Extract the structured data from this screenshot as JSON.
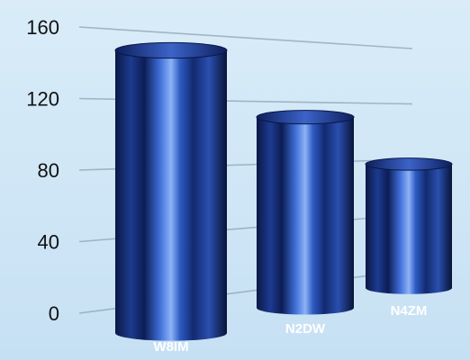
{
  "chart_data": {
    "type": "bar",
    "title": "",
    "xlabel": "",
    "ylabel": "",
    "categories": [
      "W8IM",
      "N2DW",
      "N4ZM"
    ],
    "values": [
      157,
      107,
      86
    ],
    "ylim": [
      0,
      160
    ],
    "yticks": [
      0,
      40,
      80,
      120,
      160
    ],
    "grid": true,
    "legend": "none",
    "colors": {
      "bar": "#1f3f9a",
      "bar_dark": "#0a1846",
      "bar_highlight": "#6f9cf0",
      "background": "#d3e8f7"
    }
  }
}
